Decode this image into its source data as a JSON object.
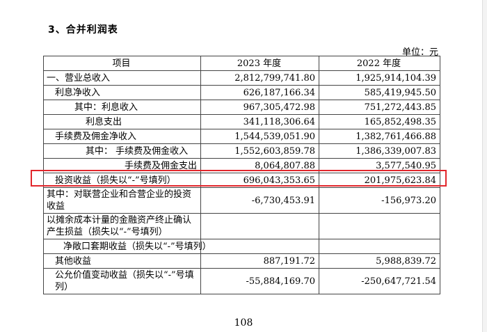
{
  "section_title": "3、合并利润表",
  "unit": "单位：元",
  "columns": [
    "项目",
    "2023 年度",
    "2022 年度"
  ],
  "rows": [
    {
      "label": "一、营业总收入",
      "v2023": "2,812,799,741.80",
      "v2022": "1,925,914,104.39"
    },
    {
      "label": "利息净收入",
      "v2023": "626,187,166.34",
      "v2022": "585,419,945.50"
    },
    {
      "label": "其中：利息收入",
      "v2023": "967,305,472.98",
      "v2022": "751,272,443.85"
    },
    {
      "label": "利息支出",
      "v2023": "341,118,306.64",
      "v2022": "165,852,498.35"
    },
    {
      "label": "手续费及佣金净收入",
      "v2023": "1,544,539,051.90",
      "v2022": "1,382,761,466.88"
    },
    {
      "label": "其中：  手续费及佣金收入",
      "v2023": "1,552,603,859.78",
      "v2022": "1,386,339,007.83"
    },
    {
      "label": "手续费及佣金支出",
      "v2023": "8,064,807.88",
      "v2022": "3,577,540.95"
    },
    {
      "label": "投资收益（损失以“-”号填列）",
      "v2023": "696,043,353.65",
      "v2022": "201,975,623.84"
    },
    {
      "label": "其中：对联营企业和合营企业的投资收益",
      "v2023": "-6,730,453.91",
      "v2022": "-156,973.20"
    },
    {
      "label": "以摊余成本计量的金融资产终止确认产生损益（损失以“-”号填列）",
      "v2023": "",
      "v2022": ""
    },
    {
      "label": "净敞口套期收益（损失以“-”号填列）",
      "v2023": "",
      "v2022": ""
    },
    {
      "label": "其他收益",
      "v2023": "887,191.72",
      "v2022": "5,988,839.72"
    },
    {
      "label": "公允价值变动收益（损失以“-”号填列）",
      "v2023": "-55,884,169.70",
      "v2022": "-250,647,721.54"
    }
  ],
  "page_number": "108",
  "highlight_color": "#e2262b"
}
